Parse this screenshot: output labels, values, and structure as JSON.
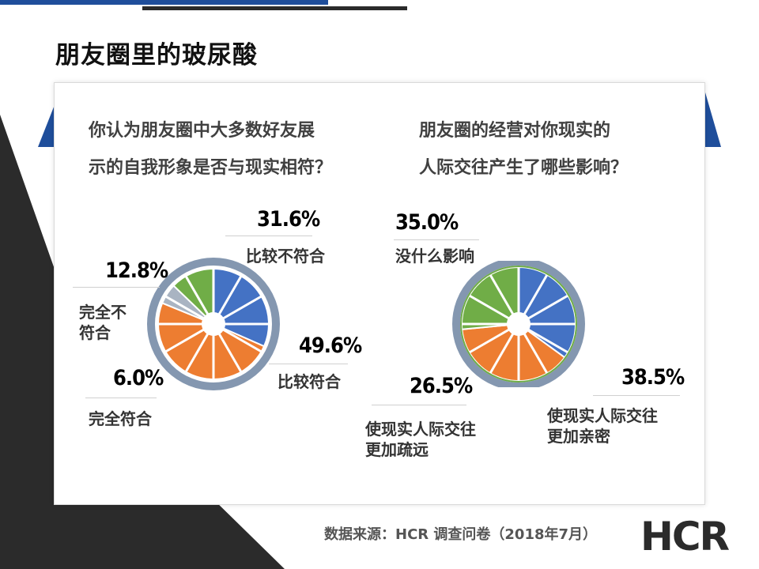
{
  "page": {
    "title": "朋友圈里的玻尿酸"
  },
  "colors": {
    "blue": "#4472c4",
    "orange": "#ed7d31",
    "green": "#70ad47",
    "grey": "#a9b4c2",
    "ring": "#8497b0",
    "brand_dark": "#2b2b2b",
    "brand_blue": "#1f4e9b"
  },
  "charts": {
    "left": {
      "question_line1": "你认为朋友圈中大多数好友展",
      "question_line2": "示的自我形象是否与现实相符？",
      "labels": {
        "a_pct": "31.6%",
        "a_name": "比较不符合",
        "b_pct": "49.6%",
        "b_name": "比较符合",
        "c_pct": "12.8%",
        "c_name_1": "完全不",
        "c_name_2": "符合",
        "d_pct": "6.0%",
        "d_name": "完全符合"
      }
    },
    "right": {
      "question_line1": "朋友圈的经营对你现实的",
      "question_line2": "人际交往产生了哪些影响？",
      "labels": {
        "a_pct": "35.0%",
        "a_name": "没什么影响",
        "b_pct": "38.5%",
        "b_name_1": "使现实人际交往",
        "b_name_2": "更加亲密",
        "c_pct": "26.5%",
        "c_name_1": "使现实人际交往",
        "c_name_2": "更加疏远"
      }
    }
  },
  "chart_data": [
    {
      "type": "pie",
      "title": "你认为朋友圈中大多数好友展示的自我形象是否与现实相符？",
      "categories": [
        "比较不符合",
        "比较符合",
        "完全符合",
        "完全不符合"
      ],
      "values": [
        31.6,
        49.6,
        6.0,
        12.8
      ],
      "colors": [
        "#4472c4",
        "#ed7d31",
        "#a9b4c2",
        "#70ad47"
      ]
    },
    {
      "type": "pie",
      "title": "朋友圈的经营对你现实的人际交往产生了哪些影响？",
      "categories": [
        "没什么影响",
        "使现实人际交往更加亲密",
        "使现实人际交往更加疏远"
      ],
      "values": [
        35.0,
        38.5,
        26.5
      ],
      "colors": [
        "#4472c4",
        "#ed7d31",
        "#70ad47"
      ]
    }
  ],
  "footer": {
    "source": "数据来源：HCR 调查问卷（2018年7月）",
    "logo": "HCR"
  }
}
